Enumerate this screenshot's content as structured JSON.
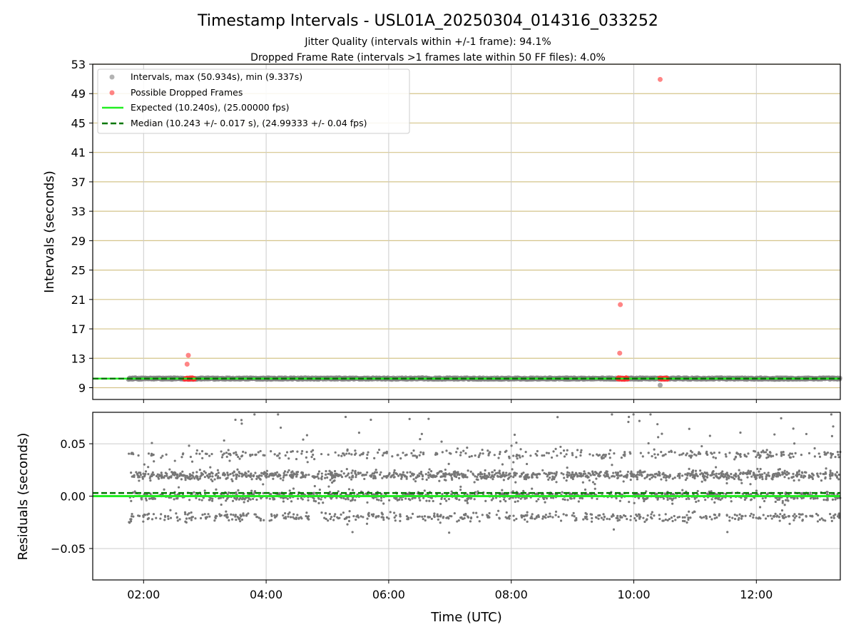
{
  "chart_data": [
    {
      "type": "scatter",
      "title": "Timestamp Intervals - USL01A_20250304_014316_033252",
      "subtitle_lines": [
        "Jitter Quality (intervals within +/-1 frame): 94.1%",
        "Dropped Frame Rate (intervals >1 frames late within 50 FF files): 4.0%"
      ],
      "xlabel": "",
      "ylabel": "Intervals (seconds)",
      "xlim": [
        1.17,
        13.37
      ],
      "ylim": [
        7.4,
        53
      ],
      "yticks": [
        9,
        13,
        17,
        21,
        25,
        29,
        33,
        37,
        41,
        45,
        49,
        53
      ],
      "xticks": [
        2,
        4,
        6,
        8,
        10,
        12
      ],
      "grid": true,
      "legend_position": "top-left",
      "colors": {
        "intervals": "#808080",
        "dropped": "#ff3333",
        "expected": "#22ee22",
        "median": "#007700",
        "hgrid": "#d4c48a",
        "vgrid": "#cccccc"
      },
      "series": [
        {
          "name": "Intervals, max (50.934s), min (9.337s)",
          "x_range": [
            1.75,
            13.37
          ],
          "baseline": 10.24,
          "outliers": [
            {
              "x": 10.43,
              "y": 9.34
            }
          ]
        },
        {
          "name": "Possible Dropped Frames",
          "points": [
            {
              "x": 2.71,
              "y": 12.2
            },
            {
              "x": 2.73,
              "y": 13.4
            },
            {
              "x": 9.77,
              "y": 13.7
            },
            {
              "x": 9.78,
              "y": 20.3
            },
            {
              "x": 10.43,
              "y": 50.93
            }
          ],
          "clusters": [
            {
              "x_start": 2.67,
              "x_end": 2.83,
              "y": 10.24
            },
            {
              "x_start": 9.74,
              "x_end": 9.9,
              "y": 10.24
            },
            {
              "x_start": 10.42,
              "x_end": 10.55,
              "y": 10.24
            }
          ]
        },
        {
          "name": "Expected (10.240s), (25.00000 fps)",
          "y": 10.24
        },
        {
          "name": "Median (10.243 +/- 0.017 s), (24.99333 +/- 0.04 fps)",
          "y": 10.243
        }
      ]
    },
    {
      "type": "scatter",
      "title": "",
      "xlabel": "Time (UTC)",
      "ylabel": "Residuals (seconds)",
      "xlim": [
        1.17,
        13.37
      ],
      "ylim": [
        -0.08,
        0.08
      ],
      "yticks": [
        0.05,
        0.0,
        -0.05
      ],
      "ytick_labels": [
        "0.05",
        "0.00",
        "−0.05"
      ],
      "xticks": [
        2,
        4,
        6,
        8,
        10,
        12
      ],
      "xtick_labels": [
        "02:00",
        "04:00",
        "06:00",
        "08:00",
        "10:00",
        "12:00"
      ],
      "grid": true,
      "residual_bands": [
        0.04,
        0.02,
        0.0,
        -0.02
      ],
      "x_range": [
        1.75,
        13.37
      ],
      "expected_y": 0.0,
      "median_y": 0.003,
      "colors": {
        "points": "#777777",
        "expected": "#22ee22",
        "median": "#007700",
        "grid": "#cccccc"
      }
    }
  ]
}
